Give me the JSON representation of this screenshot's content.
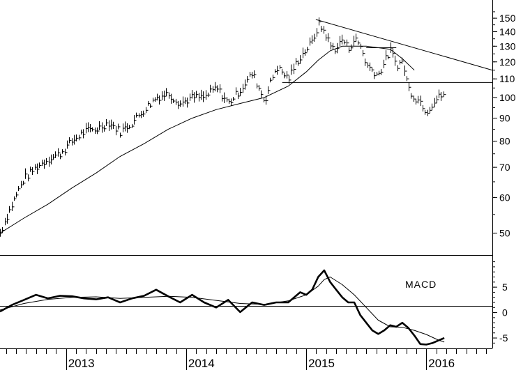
{
  "chart_data": [
    {
      "type": "line",
      "subtype": "ohlc-weekly-bars-with-moving-average",
      "title": "",
      "y_scale": "log",
      "ylim": [
        46,
        160
      ],
      "y_ticks": [
        50,
        60,
        70,
        80,
        90,
        100,
        110,
        120,
        130,
        140,
        150
      ],
      "x_ticks": [
        "2013",
        "2014",
        "2015",
        "2016"
      ],
      "xlim": [
        2012.45,
        2016.55
      ],
      "series": [
        {
          "kind": "price",
          "x": [
            2012.45,
            2012.55,
            2012.65,
            2012.75,
            2012.85,
            2012.95,
            2013.05,
            2013.15,
            2013.25,
            2013.35,
            2013.45,
            2013.55,
            2013.65,
            2013.75,
            2013.85,
            2013.95,
            2014.05,
            2014.15,
            2014.25,
            2014.35,
            2014.45,
            2014.55,
            2014.65,
            2014.75,
            2014.85,
            2014.92,
            2015.0,
            2015.05,
            2015.1,
            2015.15,
            2015.2,
            2015.25,
            2015.3,
            2015.35,
            2015.4,
            2015.45,
            2015.5,
            2015.55,
            2015.6,
            2015.65,
            2015.7,
            2015.75,
            2015.8,
            2015.85,
            2015.9,
            2015.95,
            2016.0,
            2016.05,
            2016.1,
            2016.15
          ],
          "values": [
            50,
            58,
            66,
            70,
            73,
            75,
            80,
            84,
            85,
            88,
            84,
            88,
            94,
            100,
            102,
            97,
            100,
            100,
            105,
            97,
            104,
            113,
            98,
            117,
            110,
            120,
            128,
            133,
            145,
            140,
            130,
            128,
            135,
            128,
            135,
            130,
            118,
            115,
            112,
            120,
            127,
            118,
            120,
            105,
            100,
            98,
            93,
            97,
            100,
            102
          ]
        },
        {
          "kind": "moving-average",
          "x": [
            2012.45,
            2012.65,
            2012.85,
            2013.05,
            2013.25,
            2013.45,
            2013.65,
            2013.85,
            2014.05,
            2014.25,
            2014.45,
            2014.65,
            2014.85,
            2015.0,
            2015.1,
            2015.2,
            2015.3,
            2015.4,
            2015.5,
            2015.6,
            2015.7,
            2015.8,
            2015.9
          ],
          "values": [
            50,
            54,
            58,
            63,
            68,
            74,
            79,
            85,
            90,
            94,
            97,
            100,
            106,
            114,
            121,
            127,
            130,
            130,
            130,
            129,
            128,
            122,
            115
          ]
        }
      ],
      "trendlines": [
        {
          "kind": "resistance",
          "x": [
            2015.08,
            2016.55
          ],
          "values": [
            149,
            115
          ]
        },
        {
          "kind": "support",
          "x": [
            2014.8,
            2016.55
          ],
          "values": [
            108,
            108
          ]
        },
        {
          "kind": "horizontal",
          "x": [
            2015.5,
            2015.75
          ],
          "values": [
            129,
            129
          ]
        }
      ]
    },
    {
      "type": "line",
      "title": "MACD",
      "ylim": [
        -6.5,
        10.5
      ],
      "y_ticks": [
        5,
        0,
        -5
      ],
      "series": [
        {
          "kind": "macd",
          "x": [
            2012.45,
            2012.55,
            2012.65,
            2012.75,
            2012.85,
            2012.95,
            2013.05,
            2013.15,
            2013.25,
            2013.35,
            2013.45,
            2013.55,
            2013.65,
            2013.75,
            2013.85,
            2013.95,
            2014.05,
            2014.15,
            2014.25,
            2014.35,
            2014.45,
            2014.55,
            2014.65,
            2014.75,
            2014.85,
            2014.95,
            2015.0,
            2015.05,
            2015.1,
            2015.15,
            2015.2,
            2015.25,
            2015.3,
            2015.35,
            2015.4,
            2015.45,
            2015.5,
            2015.55,
            2015.6,
            2015.65,
            2015.7,
            2015.75,
            2015.8,
            2015.85,
            2015.9,
            2015.95,
            2016.0,
            2016.05,
            2016.1,
            2016.15
          ],
          "values": [
            0.2,
            1.5,
            2.5,
            3.5,
            2.8,
            3.3,
            3.2,
            2.8,
            2.6,
            3.0,
            2.0,
            2.8,
            3.3,
            4.5,
            3.2,
            2.0,
            3.5,
            2.0,
            1.0,
            2.5,
            0.1,
            2.0,
            1.5,
            2.0,
            2.0,
            4.0,
            3.5,
            4.5,
            7.0,
            8.3,
            6.0,
            4.5,
            3.0,
            2.0,
            2.0,
            -0.5,
            -2.0,
            -3.5,
            -4.2,
            -3.5,
            -2.5,
            -2.8,
            -2.0,
            -3.0,
            -4.5,
            -6.2,
            -6.3,
            -6.0,
            -5.5,
            -5.0
          ]
        },
        {
          "kind": "signal",
          "x": [
            2012.45,
            2012.65,
            2012.85,
            2013.05,
            2013.25,
            2013.45,
            2013.65,
            2013.85,
            2014.05,
            2014.25,
            2014.45,
            2014.65,
            2014.85,
            2015.0,
            2015.1,
            2015.15,
            2015.2,
            2015.3,
            2015.4,
            2015.5,
            2015.6,
            2015.7,
            2015.8,
            2015.9,
            2016.0,
            2016.1,
            2016.15
          ],
          "values": [
            0.5,
            1.8,
            2.6,
            3.0,
            3.1,
            2.8,
            3.0,
            3.2,
            3.0,
            2.4,
            1.8,
            1.6,
            2.3,
            3.5,
            5.2,
            6.5,
            7.0,
            5.5,
            3.5,
            1.0,
            -1.5,
            -2.8,
            -2.9,
            -3.5,
            -4.3,
            -5.4,
            -5.8
          ]
        }
      ]
    }
  ],
  "labels": {
    "macd": "MACD",
    "years": [
      "2013",
      "2014",
      "2015",
      "2016"
    ],
    "price_ticks": [
      "150",
      "140",
      "130",
      "120",
      "110",
      "100",
      "90",
      "80",
      "70",
      "60",
      "50"
    ],
    "macd_ticks": [
      "5",
      "0",
      "-5"
    ]
  }
}
